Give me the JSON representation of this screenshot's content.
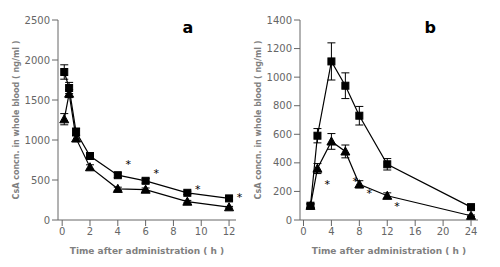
{
  "chart_data": [
    {
      "type": "line",
      "title": "a",
      "xlabel": "Time after administration ( h )",
      "ylabel": "CsA concn. in whole blood ( ng/ml )",
      "xlim": [
        -0.3,
        12.5
      ],
      "ylim": [
        0,
        2500
      ],
      "xticks": [
        0,
        2,
        4,
        6,
        8,
        10,
        12
      ],
      "yticks": [
        0,
        500,
        1000,
        1500,
        2000,
        2500
      ],
      "x": [
        0.15,
        0.5,
        1,
        2,
        4,
        6,
        9,
        12
      ],
      "series": [
        {
          "color": "#000000",
          "marker": "square",
          "line_style": "solid",
          "values": [
            1850,
            1650,
            1100,
            800,
            560,
            490,
            340,
            270
          ],
          "yerr": [
            90,
            70,
            50,
            40,
            30,
            30,
            20,
            20
          ]
        },
        {
          "color": "#000000",
          "marker": "triangle",
          "line_style": "solid",
          "values": [
            1260,
            1580,
            1020,
            660,
            390,
            380,
            230,
            160
          ],
          "yerr": [
            70,
            50,
            40,
            30,
            20,
            20,
            15,
            10
          ]
        }
      ],
      "annotations": [
        {
          "x": 4.2,
          "y": 700,
          "text": "*"
        },
        {
          "x": 6.2,
          "y": 590,
          "text": "*"
        },
        {
          "x": 9.2,
          "y": 390,
          "text": "*"
        },
        {
          "x": 12.2,
          "y": 290,
          "text": "*"
        }
      ]
    },
    {
      "type": "line",
      "title": "b",
      "xlabel": "Time after administration ( h )",
      "ylabel": "CsA concn. in whole blood ( ng/ml )",
      "xlim": [
        -0.5,
        25
      ],
      "ylim": [
        0,
        1400
      ],
      "xticks": [
        0,
        4,
        8,
        12,
        16,
        20,
        24
      ],
      "yticks": [
        0,
        200,
        400,
        600,
        800,
        1000,
        1200,
        1400
      ],
      "x": [
        1,
        2,
        4,
        6,
        8,
        12,
        24
      ],
      "series": [
        {
          "color": "#000000",
          "marker": "square",
          "line_style": "solid",
          "values": [
            100,
            590,
            1110,
            940,
            730,
            390,
            90
          ],
          "yerr": [
            15,
            50,
            130,
            90,
            65,
            40,
            10
          ]
        },
        {
          "color": "#000000",
          "marker": "triangle",
          "line_style": "solid",
          "values": [
            100,
            360,
            550,
            480,
            250,
            170,
            30
          ],
          "yerr": [
            10,
            35,
            55,
            45,
            25,
            20,
            5
          ]
        }
      ],
      "annotations": [
        {
          "x": 2.3,
          "y": 250,
          "text": "*"
        },
        {
          "x": 6.3,
          "y": 270,
          "text": "*"
        },
        {
          "x": 8.3,
          "y": 190,
          "text": "*"
        },
        {
          "x": 12.3,
          "y": 100,
          "text": "*"
        }
      ]
    }
  ]
}
